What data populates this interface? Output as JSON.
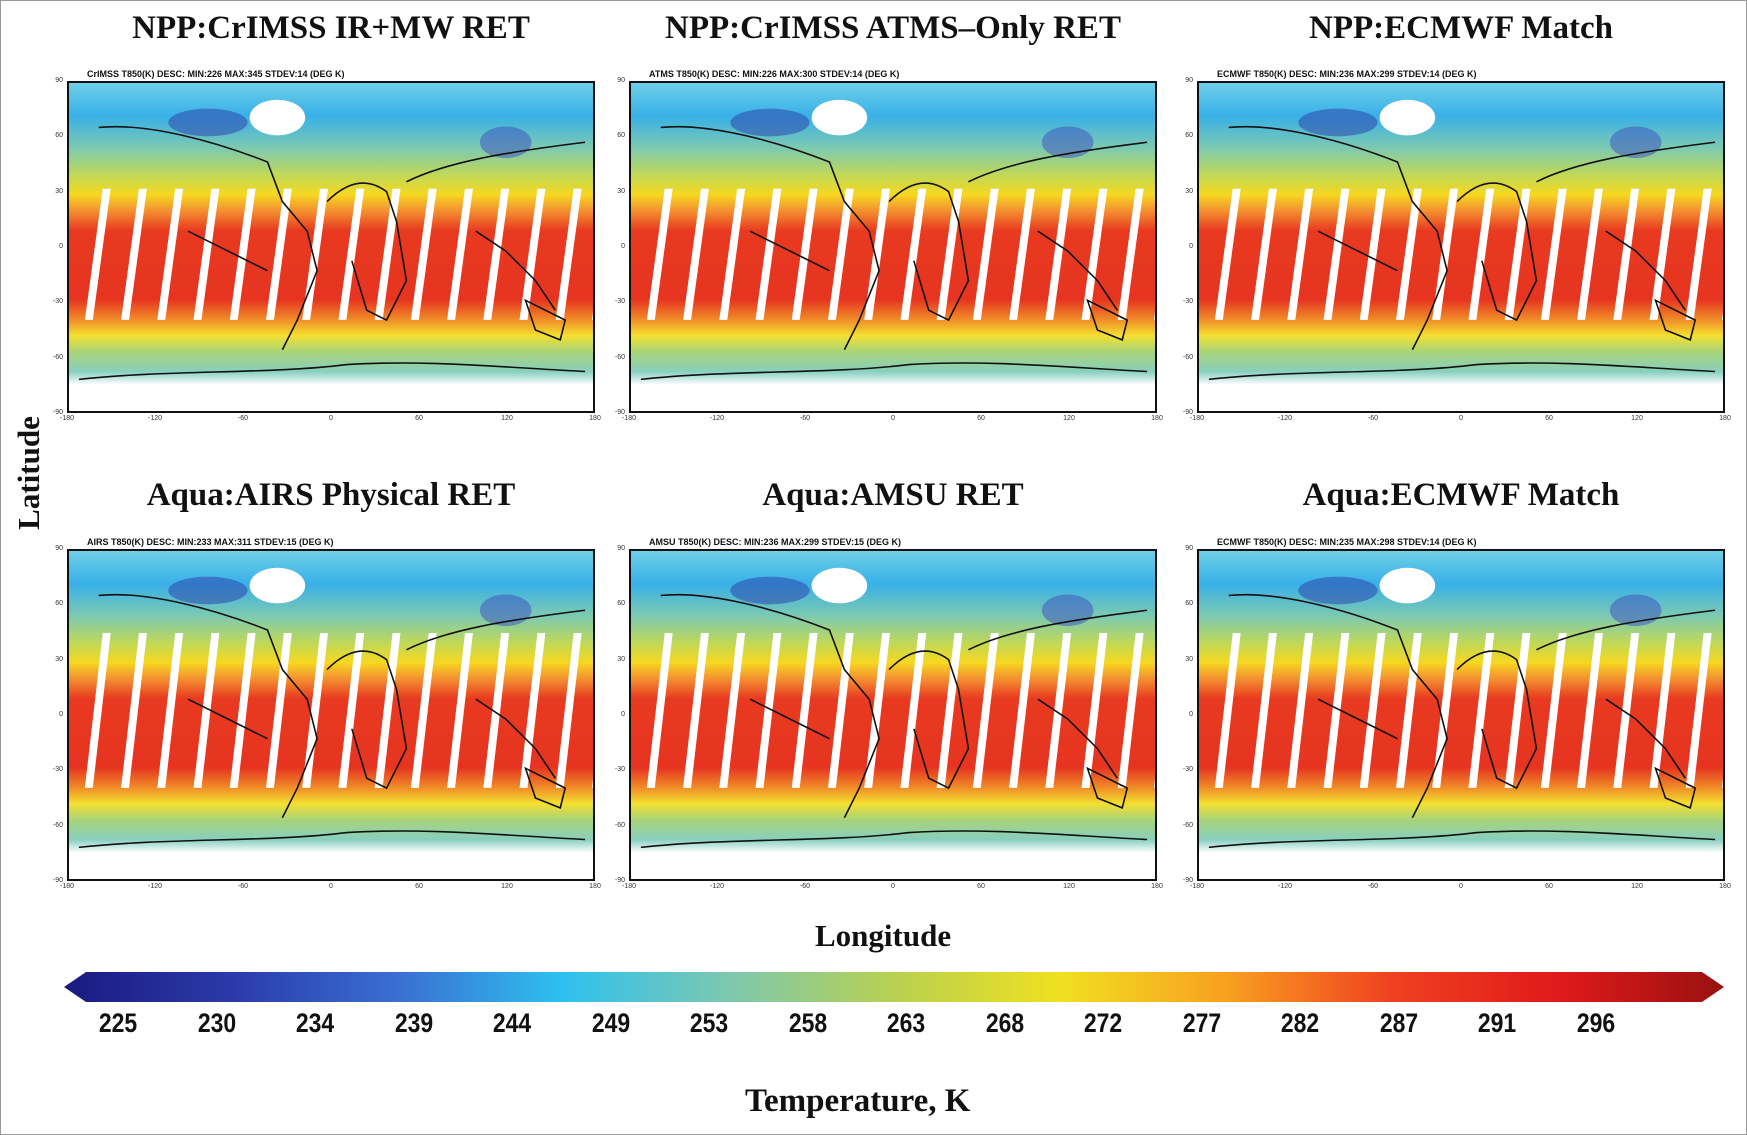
{
  "panels": [
    {
      "title": "NPP:CrIMSS IR+MW RET",
      "subtitle": "CrIMSS T850(K) DESC: MIN:226 MAX:345 STDEV:14 (DEG K)",
      "swath_top_lat": 32
    },
    {
      "title": "NPP:CrIMSS ATMS–Only RET",
      "subtitle": "ATMS T850(K) DESC: MIN:226 MAX:300 STDEV:14 (DEG K)",
      "swath_top_lat": 32
    },
    {
      "title": "NPP:ECMWF Match",
      "subtitle": "ECMWF T850(K) DESC: MIN:236 MAX:299 STDEV:14 (DEG K)",
      "swath_top_lat": 32
    },
    {
      "title": "Aqua:AIRS Physical RET",
      "subtitle": "AIRS T850(K) DESC: MIN:233 MAX:311 STDEV:15 (DEG K)",
      "swath_top_lat": 45
    },
    {
      "title": "Aqua:AMSU RET",
      "subtitle": "AMSU T850(K) DESC: MIN:236 MAX:299 STDEV:15 (DEG K)",
      "swath_top_lat": 45
    },
    {
      "title": "Aqua:ECMWF Match",
      "subtitle": "ECMWF T850(K) DESC: MIN:235 MAX:298 STDEV:14 (DEG K)",
      "swath_top_lat": 45
    }
  ],
  "x_ticks": [
    "-180",
    "-120",
    "-60",
    "0",
    "60",
    "120",
    "180"
  ],
  "y_ticks": [
    "90",
    "60",
    "30",
    "0",
    "-30",
    "-60",
    "-90"
  ],
  "ylabel": "Latitude",
  "xlabel": "Longitude",
  "colorbar": {
    "label": "Temperature, K",
    "ticks": [
      "225",
      "230",
      "234",
      "239",
      "244",
      "249",
      "253",
      "258",
      "263",
      "268",
      "272",
      "277",
      "282",
      "287",
      "291",
      "296"
    ],
    "colors": [
      "#1a1a80",
      "#2a3aa8",
      "#3a6ed0",
      "#2ec0f0",
      "#7cc8b0",
      "#b8d050",
      "#f0e020",
      "#f8a020",
      "#f04020",
      "#e01a1a",
      "#9a1010"
    ]
  }
}
